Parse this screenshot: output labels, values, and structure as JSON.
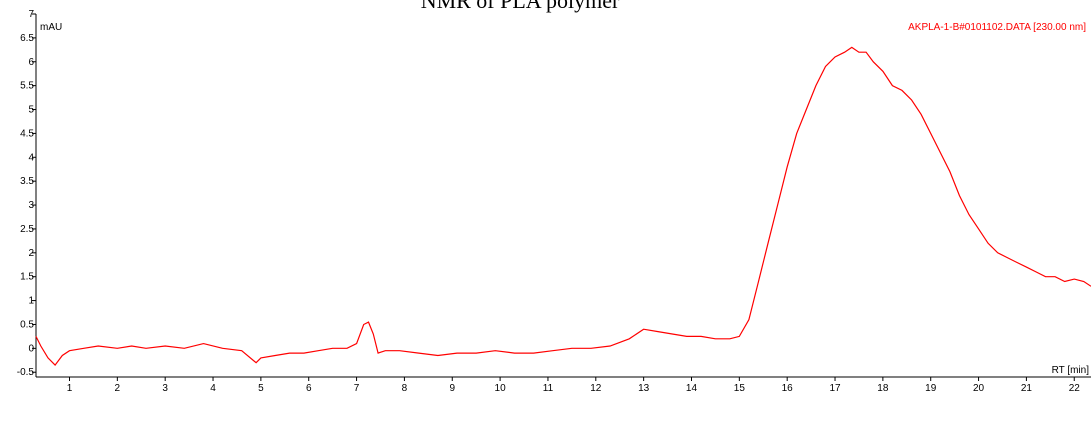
{
  "chart_data": {
    "type": "line",
    "title": "NMR of PLA polymer",
    "ylabel": "mAU",
    "xlabel": "RT [min]",
    "legend_entry": "AKPLA-1-B#0101102.DATA [230.00 nm]",
    "legend_placement": "top-right",
    "series_color": "#ff0000",
    "xlim": [
      0.3,
      22.35
    ],
    "ylim": [
      -0.6,
      7.0
    ],
    "x_ticks": [
      1,
      2,
      3,
      4,
      5,
      6,
      7,
      8,
      9,
      10,
      11,
      12,
      13,
      14,
      15,
      16,
      17,
      18,
      19,
      20,
      21,
      22
    ],
    "x_tick_labels": [
      "1",
      "2",
      "3",
      "4",
      "5",
      "6",
      "7",
      "8",
      "9",
      "10",
      "11",
      "12",
      "13",
      "14",
      "15",
      "16",
      "17",
      "18",
      "19",
      "20",
      "21",
      "22"
    ],
    "y_ticks": [
      -0.5,
      0,
      0.5,
      1,
      1.5,
      2,
      2.5,
      3,
      3.5,
      4,
      4.5,
      5,
      5.5,
      6,
      6.5,
      7
    ],
    "y_tick_labels": [
      "-0.5",
      "0",
      "0.5",
      "1",
      "1.5",
      "2",
      "2.5",
      "3",
      "3.5",
      "4",
      "4.5",
      "5",
      "5.5",
      "6",
      "6.5",
      "7"
    ],
    "grid": false,
    "series": [
      {
        "x": [
          0.3,
          0.4,
          0.55,
          0.7,
          0.85,
          1.0,
          1.3,
          1.6,
          2.0,
          2.3,
          2.6,
          3.0,
          3.4,
          3.8,
          4.2,
          4.6,
          4.9,
          5.0,
          5.3,
          5.6,
          5.9,
          6.2,
          6.5,
          6.8,
          7.0,
          7.15,
          7.25,
          7.35,
          7.45,
          7.6,
          7.9,
          8.3,
          8.7,
          9.1,
          9.5,
          9.9,
          10.3,
          10.7,
          11.1,
          11.5,
          11.9,
          12.3,
          12.7,
          13.0,
          13.3,
          13.6,
          13.9,
          14.2,
          14.5,
          14.8,
          15.0,
          15.2,
          15.4,
          15.6,
          15.8,
          16.0,
          16.2,
          16.4,
          16.6,
          16.8,
          17.0,
          17.2,
          17.35,
          17.5,
          17.65,
          17.8,
          18.0,
          18.2,
          18.4,
          18.6,
          18.8,
          19.0,
          19.2,
          19.4,
          19.6,
          19.8,
          20.0,
          20.2,
          20.4,
          20.6,
          20.8,
          21.0,
          21.2,
          21.4,
          21.6,
          21.8,
          22.0,
          22.2,
          22.35
        ],
        "y": [
          0.25,
          0.05,
          -0.2,
          -0.35,
          -0.15,
          -0.05,
          0.0,
          0.05,
          0.0,
          0.05,
          0.0,
          0.05,
          0.0,
          0.1,
          0.0,
          -0.05,
          -0.3,
          -0.2,
          -0.15,
          -0.1,
          -0.1,
          -0.05,
          0.0,
          0.0,
          0.1,
          0.5,
          0.55,
          0.3,
          -0.1,
          -0.05,
          -0.05,
          -0.1,
          -0.15,
          -0.1,
          -0.1,
          -0.05,
          -0.1,
          -0.1,
          -0.05,
          0.0,
          0.0,
          0.05,
          0.2,
          0.4,
          0.35,
          0.3,
          0.25,
          0.25,
          0.2,
          0.2,
          0.25,
          0.6,
          1.4,
          2.2,
          3.0,
          3.8,
          4.5,
          5.0,
          5.5,
          5.9,
          6.1,
          6.2,
          6.3,
          6.2,
          6.2,
          6.0,
          5.8,
          5.5,
          5.4,
          5.2,
          4.9,
          4.5,
          4.1,
          3.7,
          3.2,
          2.8,
          2.5,
          2.2,
          2.0,
          1.9,
          1.8,
          1.7,
          1.6,
          1.5,
          1.5,
          1.4,
          1.45,
          1.4,
          1.3
        ]
      }
    ]
  }
}
